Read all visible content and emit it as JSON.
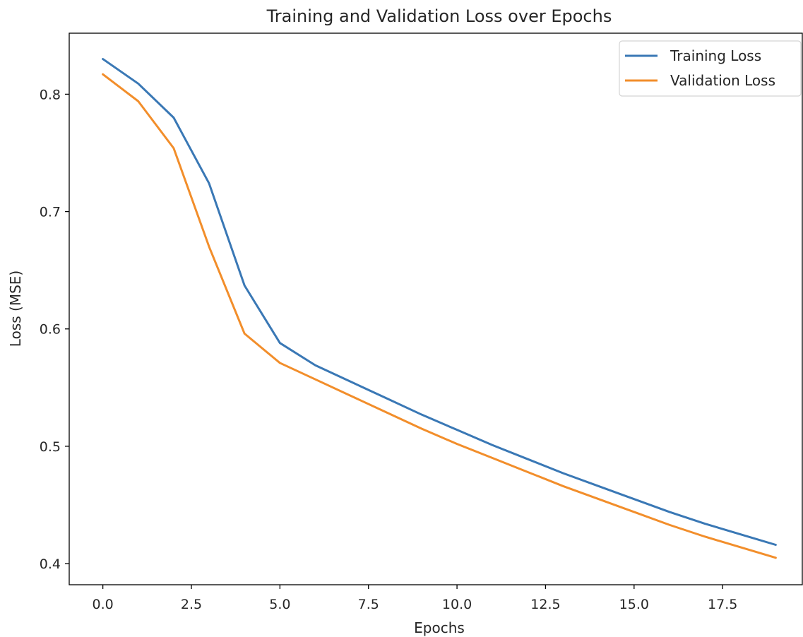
{
  "chart_data": {
    "type": "line",
    "title": "Training and Validation Loss over Epochs",
    "xlabel": "Epochs",
    "ylabel": "Loss (MSE)",
    "xlim": [
      -0.95,
      19.75
    ],
    "ylim": [
      0.382,
      0.852
    ],
    "x_ticks": [
      0.0,
      2.5,
      5.0,
      7.5,
      10.0,
      12.5,
      15.0,
      17.5
    ],
    "x_tick_labels": [
      "0.0",
      "2.5",
      "5.0",
      "7.5",
      "10.0",
      "12.5",
      "15.0",
      "17.5"
    ],
    "y_ticks": [
      0.4,
      0.5,
      0.6,
      0.7,
      0.8
    ],
    "y_tick_labels": [
      "0.4",
      "0.5",
      "0.6",
      "0.7",
      "0.8"
    ],
    "grid": false,
    "legend_position": "top-right",
    "x": [
      0,
      1,
      2,
      3,
      4,
      5,
      6,
      7,
      8,
      9,
      10,
      11,
      12,
      13,
      14,
      15,
      16,
      17,
      18,
      19
    ],
    "series": [
      {
        "name": "Training Loss",
        "color": "#3a78b5",
        "values": [
          0.83,
          0.809,
          0.78,
          0.724,
          0.637,
          0.588,
          0.569,
          0.555,
          0.541,
          0.527,
          0.514,
          0.501,
          0.489,
          0.477,
          0.466,
          0.455,
          0.444,
          0.434,
          0.425,
          0.416
        ]
      },
      {
        "name": "Validation Loss",
        "color": "#f28e2b",
        "values": [
          0.817,
          0.794,
          0.754,
          0.67,
          0.596,
          0.571,
          0.557,
          0.543,
          0.529,
          0.515,
          0.502,
          0.49,
          0.478,
          0.466,
          0.455,
          0.444,
          0.433,
          0.423,
          0.414,
          0.405
        ]
      }
    ]
  }
}
